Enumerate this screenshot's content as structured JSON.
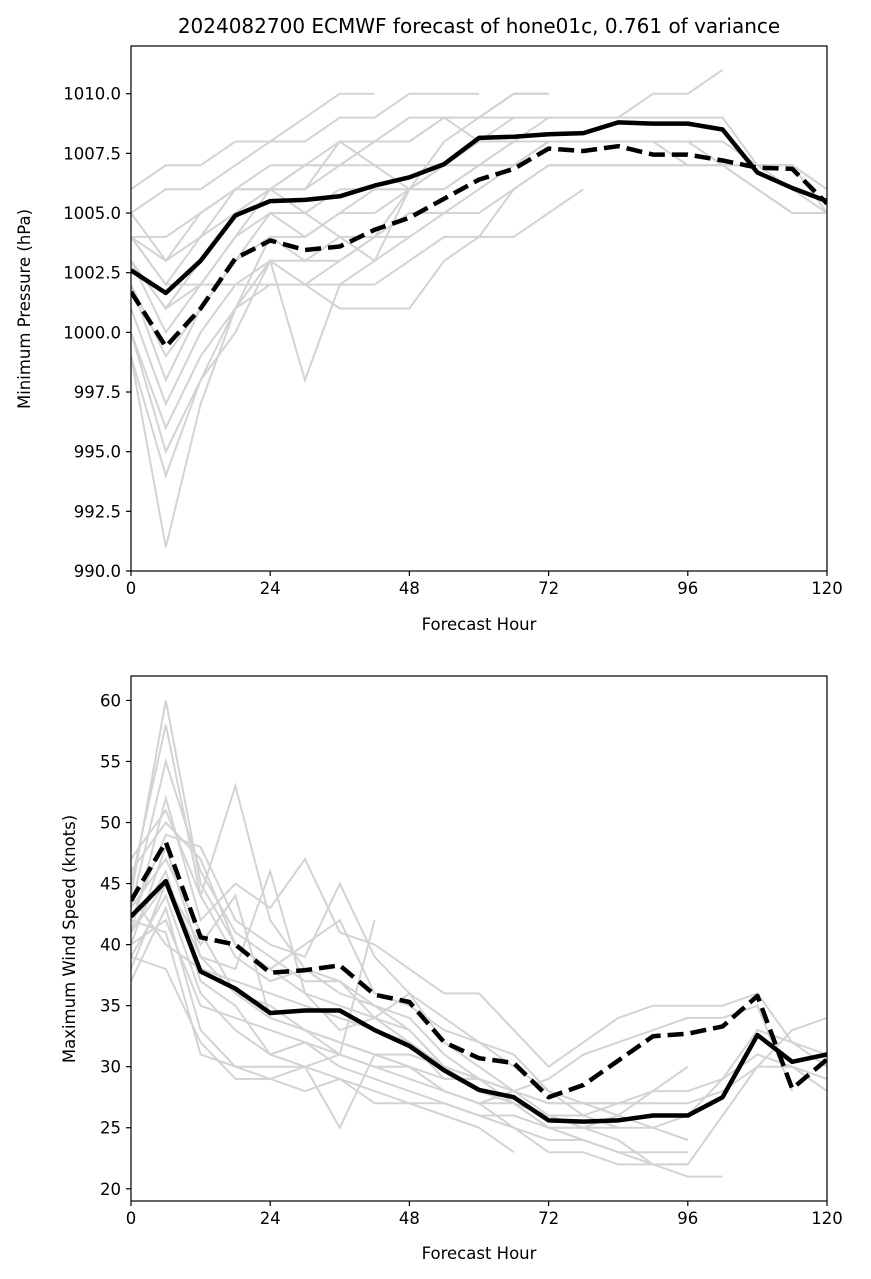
{
  "figure": {
    "title": "2024082700 ECMWF forecast of hone01c, 0.761 of variance"
  },
  "chart_data": [
    {
      "type": "line",
      "name": "pressure",
      "title": "2024082700 ECMWF forecast of hone01c, 0.761 of variance",
      "xlabel": "Forecast Hour",
      "ylabel": "Minimum Pressure (hPa)",
      "xlim": [
        0,
        120
      ],
      "ylim": [
        990,
        1012
      ],
      "xticks": [
        0,
        24,
        48,
        72,
        96,
        120
      ],
      "xtick_labels": [
        "0",
        "24",
        "48",
        "72",
        "96",
        "120"
      ],
      "yticks": [
        990,
        992.5,
        995,
        997.5,
        1000,
        1002.5,
        1005,
        1007.5,
        1010
      ],
      "ytick_labels": [
        "990.0",
        "992.5",
        "995.0",
        "997.5",
        "1000.0",
        "1002.5",
        "1005.0",
        "1007.5",
        "1010.0"
      ],
      "grid": false,
      "x": [
        0,
        6,
        12,
        18,
        24,
        30,
        36,
        42,
        48,
        54,
        60,
        66,
        72,
        78,
        84,
        90,
        96,
        102,
        108,
        114,
        120
      ],
      "series": [
        {
          "name": "ensemble mean",
          "style": "solid",
          "color": "#000000",
          "values": [
            1002.6,
            1001.65,
            1003.0,
            1004.9,
            1005.5,
            1005.55,
            1005.7,
            1006.15,
            1006.5,
            1007.05,
            1008.15,
            1008.2,
            1008.3,
            1008.35,
            1008.8,
            1008.75,
            1008.75,
            1008.5,
            1006.7,
            1006.05,
            1005.5
          ]
        },
        {
          "name": "reconstruction",
          "style": "dashed",
          "color": "#000000",
          "values": [
            1001.7,
            999.4,
            1001.0,
            1003.1,
            1003.85,
            1003.45,
            1003.6,
            1004.3,
            1004.8,
            1005.6,
            1006.4,
            1006.85,
            1007.7,
            1007.6,
            1007.8,
            1007.45,
            1007.45,
            1007.2,
            1006.9,
            1006.85,
            1005.4
          ]
        }
      ],
      "members_color": "#d3d3d3",
      "members": [
        [
          1006,
          1007,
          1007,
          1008,
          1008,
          1009,
          1010,
          1010
        ],
        [
          1005,
          1006,
          1006,
          1007,
          1008,
          1008,
          1009,
          1009,
          1010,
          1010,
          1010
        ],
        [
          1004,
          1003,
          1005,
          1006,
          1007,
          1007,
          1008,
          1008,
          1009,
          1009,
          1009,
          1010,
          1010
        ],
        [
          1004,
          1002,
          1004,
          1006,
          1006,
          1007,
          1007,
          1008,
          1008,
          1009,
          1009,
          1009,
          1009,
          1009,
          1009,
          1010,
          1010,
          1011
        ],
        [
          1003,
          1001,
          1003,
          1005,
          1006,
          1006,
          1007,
          1007,
          1007,
          1007,
          1008,
          1008,
          1009,
          1009,
          1009,
          1009,
          1009,
          1009,
          1007,
          1006,
          1005
        ],
        [
          1003,
          1000,
          1002,
          1004,
          1005,
          1005,
          1006,
          1006,
          1006,
          1007,
          1007,
          1008,
          1008,
          1008,
          1008,
          1008,
          1008,
          1008,
          1007,
          1007,
          1006
        ],
        [
          1002,
          999,
          1001,
          1003,
          1005,
          1004,
          1005,
          1005,
          1006,
          1006,
          1007,
          1007,
          1008,
          1008,
          1008,
          1008,
          1008,
          1007,
          1007,
          1007,
          1006
        ],
        [
          1002,
          998,
          1001,
          1003,
          1004,
          1003,
          1004,
          1004,
          1005,
          1005,
          1006,
          1007,
          1008,
          1008,
          1008,
          1008,
          1007,
          1007,
          1007,
          1007,
          1005
        ],
        [
          1001,
          997,
          1000,
          1002,
          1003,
          1003,
          1003,
          1004,
          1004,
          1005,
          1005,
          1006,
          1007,
          1007,
          1007,
          1007,
          1007,
          1007,
          1006,
          1005,
          1005
        ],
        [
          1000,
          996,
          999,
          1001,
          1003,
          1002,
          1002,
          1002,
          1003,
          1004,
          1004,
          1006,
          1007,
          1007,
          1007,
          1007,
          1007,
          1007,
          1006,
          1005,
          1005
        ],
        [
          1000,
          995,
          998,
          1001,
          1002,
          1002,
          1001,
          1001,
          1001,
          1003,
          1004,
          1004,
          1005,
          1006
        ],
        [
          999,
          994,
          998,
          1000,
          1003,
          998,
          1002,
          1003,
          1004
        ],
        [
          999,
          991,
          997,
          1001,
          1004,
          1004,
          1005,
          1006,
          1006,
          1006,
          1007,
          1007,
          1008
        ],
        [
          1004,
          1004,
          1005,
          1006,
          1006,
          1005,
          1004,
          1003,
          1006,
          1007,
          1007,
          1008
        ],
        [
          1005,
          1003,
          1004,
          1005,
          1006,
          1007,
          1007,
          1008,
          1008,
          1009,
          1008,
          1009
        ],
        [
          1004,
          1002,
          1002,
          1004,
          1006,
          1006,
          1008,
          1007,
          1006,
          1008,
          1009,
          1010,
          1010
        ],
        [
          1003,
          1001,
          1002,
          1002,
          1002,
          1002,
          1003,
          1004,
          1006,
          1007,
          1008,
          1008,
          1008
        ]
      ]
    },
    {
      "type": "line",
      "name": "wind",
      "xlabel": "Forecast Hour",
      "ylabel": "Maximum Wind Speed (knots)",
      "xlim": [
        0,
        120
      ],
      "ylim": [
        19,
        62
      ],
      "xticks": [
        0,
        24,
        48,
        72,
        96,
        120
      ],
      "xtick_labels": [
        "0",
        "24",
        "48",
        "72",
        "96",
        "120"
      ],
      "yticks": [
        20,
        25,
        30,
        35,
        40,
        45,
        50,
        55,
        60
      ],
      "ytick_labels": [
        "20",
        "25",
        "30",
        "35",
        "40",
        "45",
        "50",
        "55",
        "60"
      ],
      "grid": false,
      "x": [
        0,
        6,
        12,
        18,
        24,
        30,
        36,
        42,
        48,
        54,
        60,
        66,
        72,
        78,
        84,
        90,
        96,
        102,
        108,
        114,
        120
      ],
      "series": [
        {
          "name": "ensemble mean",
          "style": "solid",
          "color": "#000000",
          "values": [
            42.3,
            45.2,
            37.8,
            36.4,
            34.4,
            34.6,
            34.6,
            33.0,
            31.7,
            29.7,
            28.1,
            27.5,
            25.6,
            25.5,
            25.6,
            26.0,
            26.0,
            27.5,
            32.6,
            30.4,
            31.0
          ]
        },
        {
          "name": "reconstruction",
          "style": "dashed",
          "color": "#000000",
          "values": [
            43.6,
            48.4,
            40.6,
            40.0,
            37.7,
            37.9,
            38.3,
            35.9,
            35.3,
            32.0,
            30.7,
            30.3,
            27.5,
            28.5,
            30.5,
            32.5,
            32.7,
            33.3,
            35.8,
            28.2,
            30.6
          ]
        }
      ],
      "members_color": "#d3d3d3",
      "members": [
        [
          44,
          60,
          45,
          40,
          38,
          36,
          35,
          34,
          33,
          30,
          28,
          27,
          25,
          24,
          23,
          22,
          22,
          26,
          30,
          33,
          34
        ],
        [
          45,
          58,
          44,
          39,
          37,
          38,
          36,
          35,
          34,
          31,
          29,
          27,
          26,
          25,
          24,
          22,
          21,
          21
        ],
        [
          43,
          55,
          46,
          41,
          39,
          37,
          37,
          35,
          33,
          30,
          29,
          28,
          26,
          26,
          27,
          28,
          28,
          29,
          31,
          30,
          28
        ],
        [
          41,
          52,
          42,
          45,
          43,
          47,
          41,
          40,
          38,
          36,
          36,
          33,
          30,
          32,
          34,
          35,
          35,
          35,
          36,
          32,
          31
        ],
        [
          47,
          51,
          44,
          53,
          42,
          38,
          37,
          34,
          32,
          30,
          29,
          28,
          27,
          27,
          26,
          25,
          26,
          29,
          33,
          32,
          30
        ],
        [
          46,
          50,
          47,
          40,
          38,
          40,
          42,
          36,
          35,
          33,
          32,
          31,
          28,
          27,
          27,
          27,
          27,
          28,
          30,
          30,
          29
        ],
        [
          42,
          49,
          48,
          42,
          40,
          39,
          45,
          39,
          36,
          34,
          32,
          30,
          28,
          26,
          25,
          25,
          24
        ],
        [
          40,
          48,
          39,
          38,
          46,
          36,
          33,
          34,
          36,
          32,
          30,
          28,
          27,
          27,
          27,
          27
        ],
        [
          43,
          47,
          41,
          36,
          35,
          33,
          32,
          31,
          30,
          29,
          29
        ],
        [
          41,
          46,
          37,
          35,
          31,
          32,
          30,
          29,
          28,
          27,
          26,
          26,
          25,
          25,
          25
        ],
        [
          38,
          45,
          40,
          44,
          34,
          33,
          31,
          42
        ],
        [
          39,
          44,
          36,
          33,
          31,
          30,
          25,
          31,
          30,
          28,
          27,
          25,
          24,
          24,
          23,
          23,
          23
        ],
        [
          37,
          43,
          33,
          30,
          30,
          30,
          29,
          28,
          27,
          27,
          26,
          25,
          23,
          23,
          22,
          22,
          22
        ],
        [
          40,
          42,
          35,
          34,
          33,
          32,
          31,
          30,
          29,
          28,
          27,
          27,
          26
        ],
        [
          42,
          41,
          31,
          30,
          29,
          28,
          29,
          27,
          27,
          26,
          25,
          23
        ],
        [
          44,
          40,
          38,
          37,
          36,
          35,
          34,
          33,
          32,
          29,
          29,
          28
        ],
        [
          39,
          38,
          32,
          29,
          29,
          30,
          31,
          30,
          30,
          28,
          27,
          28,
          29,
          31,
          32,
          33,
          34,
          34,
          35,
          28
        ],
        [
          41,
          45,
          39,
          36,
          34,
          33,
          32,
          31,
          31,
          30,
          28,
          27,
          25,
          25,
          26,
          28,
          30
        ]
      ]
    }
  ]
}
